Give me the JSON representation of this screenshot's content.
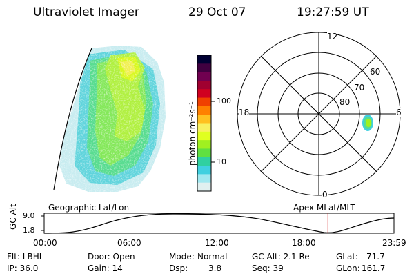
{
  "header": {
    "instrument": "Ultraviolet Imager",
    "date": "29 Oct 07",
    "time": "19:27:59 UT"
  },
  "colorbar": {
    "label": "photon cm⁻²s⁻¹",
    "ticks": [
      "100",
      "10"
    ],
    "colors": [
      "#000033",
      "#400040",
      "#700050",
      "#a00030",
      "#d00020",
      "#f04000",
      "#ff8000",
      "#ffc020",
      "#f8f060",
      "#e0ff20",
      "#a0f020",
      "#60e040",
      "#30d0a0",
      "#40d0e0",
      "#a0e8f0",
      "#e0f0f0"
    ]
  },
  "polar": {
    "mlt_labels": [
      "12",
      "18",
      "6",
      "0"
    ],
    "lat_labels": [
      "60",
      "70",
      "80"
    ]
  },
  "timeline": {
    "ylabel": "GC Alt",
    "yticks": [
      "9.0",
      "1.8"
    ],
    "left_label": "Geographic Lat/Lon",
    "right_label": "Apex MLat/MLT",
    "xticks": [
      "00:00",
      "06:00",
      "12:00",
      "18:00",
      "23:59"
    ],
    "current_time_hours": 19.47
  },
  "info": {
    "flt": "Flt: LBHL",
    "ip": "IP: 36.0",
    "door": "Door: Open",
    "gain": "Gain: 14",
    "mode_label": "Mode:",
    "mode_value": "Normal",
    "dsp_label": "Dsp:",
    "dsp_value": "3.8",
    "gc_alt": "GC Alt: 2.1 Re",
    "seq": "Seq: 39",
    "glat_label": "GLat:",
    "glat_value": "71.7",
    "glon_label": "GLon:",
    "glon_value": "161.7"
  }
}
